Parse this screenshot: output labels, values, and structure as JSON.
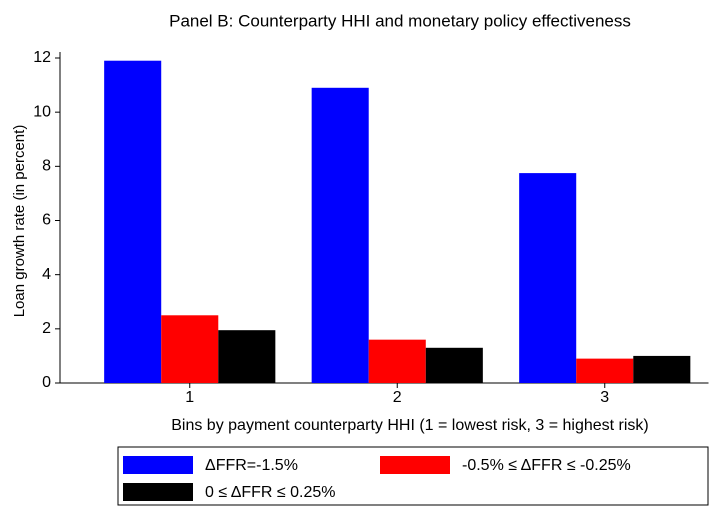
{
  "chart_data": {
    "type": "bar",
    "title": "Panel B: Counterparty HHI and monetary policy effectiveness",
    "x_label": "Bins by payment counterparty HHI (1 = lowest risk, 3 = highest risk)",
    "y_label": "Loan growth rate (in percent)",
    "categories": [
      "1",
      "2",
      "3"
    ],
    "series": [
      {
        "name": "ΔFFR=-1.5%",
        "color": "#0000ff",
        "values": [
          11.9,
          10.9,
          7.75
        ]
      },
      {
        "name": "-0.5% ≤ ΔFFR ≤ -0.25%",
        "color": "#ff0000",
        "values": [
          2.5,
          1.6,
          0.9
        ]
      },
      {
        "name": "0 ≤ ΔFFR ≤ 0.25%",
        "color": "#000000",
        "values": [
          1.95,
          1.3,
          1.0
        ]
      }
    ],
    "ylim": [
      0,
      12
    ],
    "yticks": [
      0,
      2,
      4,
      6,
      8,
      10,
      12
    ],
    "grid": false
  }
}
